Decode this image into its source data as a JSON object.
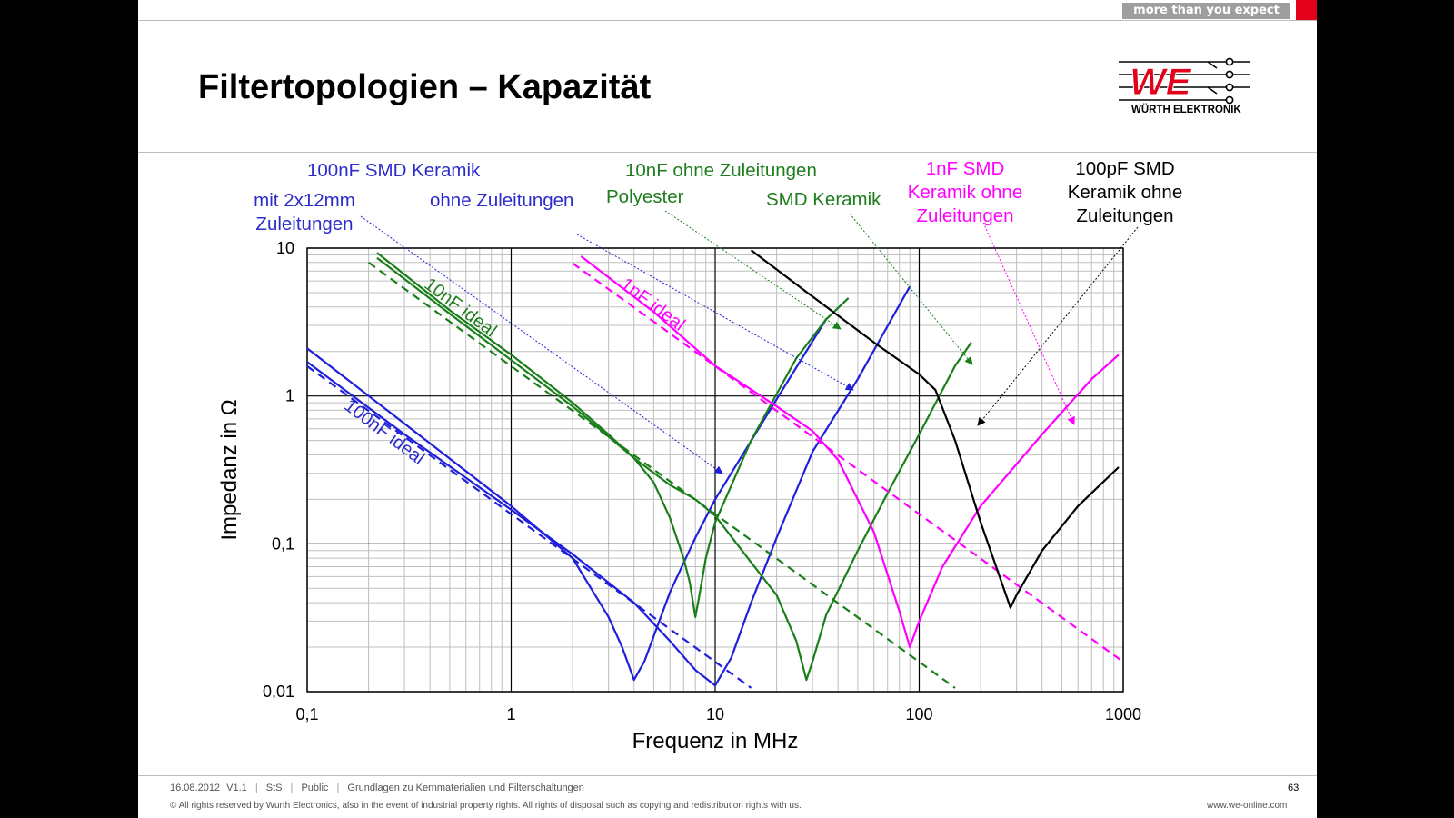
{
  "header": {
    "tagline": "more than you expect",
    "title": "Filtertopologien – Kapazität",
    "brand_initials": "WE",
    "brand_name": "WÜRTH ELEKTRONIK",
    "colors": {
      "brand_red": "#e2001a",
      "tagline_bg": "#9e9e9e"
    }
  },
  "annotations": {
    "blue_group": "100nF SMD Keramik",
    "blue_leads_1": "mit 2x12mm",
    "blue_leads_2": "Zuleitungen",
    "blue_noleads": "ohne Zuleitungen",
    "green_group": "10nF ohne Zuleitungen",
    "green_polyester": "Polyester",
    "green_smd": "SMD Keramik",
    "pink_1": "1nF SMD",
    "pink_2": "Keramik ohne",
    "pink_3": "Zuleitungen",
    "black_1": "100pF SMD",
    "black_2": "Keramik ohne",
    "black_3": "Zuleitungen"
  },
  "chart_data": {
    "type": "line",
    "x_scale": "log",
    "y_scale": "log",
    "xlabel": "Frequenz in MHz",
    "ylabel": "Impedanz in Ω",
    "xlim": [
      0.1,
      1000
    ],
    "ylim": [
      0.01,
      10
    ],
    "x_ticks": [
      {
        "value": 0.1,
        "label": "0,1"
      },
      {
        "value": 1,
        "label": "1"
      },
      {
        "value": 10,
        "label": "10"
      },
      {
        "value": 100,
        "label": "100"
      },
      {
        "value": 1000,
        "label": "1000"
      }
    ],
    "y_ticks": [
      {
        "value": 0.01,
        "label": "0,01"
      },
      {
        "value": 0.1,
        "label": "0,1"
      },
      {
        "value": 1,
        "label": "1"
      },
      {
        "value": 10,
        "label": "10"
      }
    ],
    "grid": true,
    "series": [
      {
        "name": "100nF ideal",
        "color": "#1f1fdc",
        "dashed": true,
        "x": [
          0.1,
          0.3,
          1,
          3,
          10,
          15
        ],
        "y": [
          1.59,
          0.53,
          0.159,
          0.053,
          0.0159,
          0.0106
        ]
      },
      {
        "color": "#1f1fdc",
        "dashed": false,
        "x": [
          0.1,
          0.3,
          1,
          2,
          3,
          3.5,
          4,
          4.5,
          6,
          8,
          10,
          20,
          35
        ],
        "y": [
          2.1,
          0.65,
          0.18,
          0.08,
          0.032,
          0.02,
          0.012,
          0.016,
          0.047,
          0.11,
          0.2,
          0.95,
          3.3
        ]
      },
      {
        "color": "#1f1fdc",
        "dashed": false,
        "x": [
          0.1,
          0.3,
          1,
          2,
          4,
          6,
          8,
          10,
          12,
          15,
          20,
          30,
          50,
          90
        ],
        "y": [
          1.7,
          0.55,
          0.17,
          0.085,
          0.04,
          0.022,
          0.014,
          0.011,
          0.017,
          0.04,
          0.11,
          0.42,
          1.3,
          5.5
        ]
      },
      {
        "name": "10nF ideal",
        "color": "#1a7f1a",
        "dashed": true,
        "x": [
          0.2,
          0.5,
          1,
          3,
          10,
          30,
          100,
          150
        ],
        "y": [
          8.0,
          3.18,
          1.59,
          0.53,
          0.159,
          0.053,
          0.0159,
          0.0106
        ]
      },
      {
        "color": "#1a7f1a",
        "dashed": false,
        "x": [
          0.22,
          0.5,
          1,
          2,
          3,
          4,
          5,
          6,
          7,
          7.5,
          8,
          8.3,
          9,
          10,
          15,
          25,
          35,
          45
        ],
        "y": [
          9.3,
          3.8,
          1.9,
          0.9,
          0.55,
          0.38,
          0.26,
          0.15,
          0.08,
          0.055,
          0.032,
          0.042,
          0.08,
          0.14,
          0.5,
          1.8,
          3.3,
          4.6
        ]
      },
      {
        "color": "#1a7f1a",
        "dashed": false,
        "x": [
          0.22,
          0.5,
          1,
          2,
          4,
          6,
          8,
          10,
          15,
          20,
          25,
          28,
          30,
          35,
          50,
          70,
          100,
          150,
          180
        ],
        "y": [
          8.6,
          3.6,
          1.75,
          0.85,
          0.38,
          0.25,
          0.2,
          0.155,
          0.075,
          0.045,
          0.022,
          0.012,
          0.016,
          0.033,
          0.09,
          0.22,
          0.55,
          1.6,
          2.3
        ]
      },
      {
        "name": "1nF ideal",
        "color": "#ff00ff",
        "dashed": true,
        "x": [
          2,
          5,
          10,
          30,
          100,
          300,
          1000
        ],
        "y": [
          7.9,
          3.18,
          1.59,
          0.53,
          0.159,
          0.053,
          0.0159
        ]
      },
      {
        "color": "#ff00ff",
        "dashed": false,
        "x": [
          2.2,
          5,
          10,
          20,
          30,
          40,
          60,
          80,
          90,
          100,
          130,
          200,
          400,
          700,
          950
        ],
        "y": [
          8.8,
          3.7,
          1.6,
          0.85,
          0.58,
          0.37,
          0.12,
          0.035,
          0.02,
          0.03,
          0.07,
          0.18,
          0.55,
          1.3,
          1.9
        ]
      },
      {
        "name": "100pF SMD Keramik ohne Zuleitungen",
        "color": "#000000",
        "dashed": false,
        "x": [
          15,
          30,
          60,
          100,
          120,
          150,
          200,
          280,
          300,
          400,
          600,
          950
        ],
        "y": [
          9.7,
          4.7,
          2.3,
          1.4,
          1.1,
          0.5,
          0.14,
          0.037,
          0.045,
          0.09,
          0.18,
          0.33
        ]
      }
    ],
    "annotations": [
      {
        "text": "100nF ideal",
        "color": "#2b2bcc"
      },
      {
        "text": "10nF ideal",
        "color": "#1e7e1e"
      },
      {
        "text": "1nF ideal",
        "color": "#ff00ff"
      }
    ]
  },
  "footer": {
    "date": "16.08.2012",
    "version": "V1.1",
    "author": "StS",
    "classification": "Public",
    "topic": "Grundlagen zu Kernmaterialien und Filterschaltungen",
    "page": "63",
    "copyright": "© All rights reserved by Wurth Electronics, also in the event of industrial property rights. All rights of disposal such as copying and redistribution rights with us.",
    "website": "www.we-online.com"
  }
}
